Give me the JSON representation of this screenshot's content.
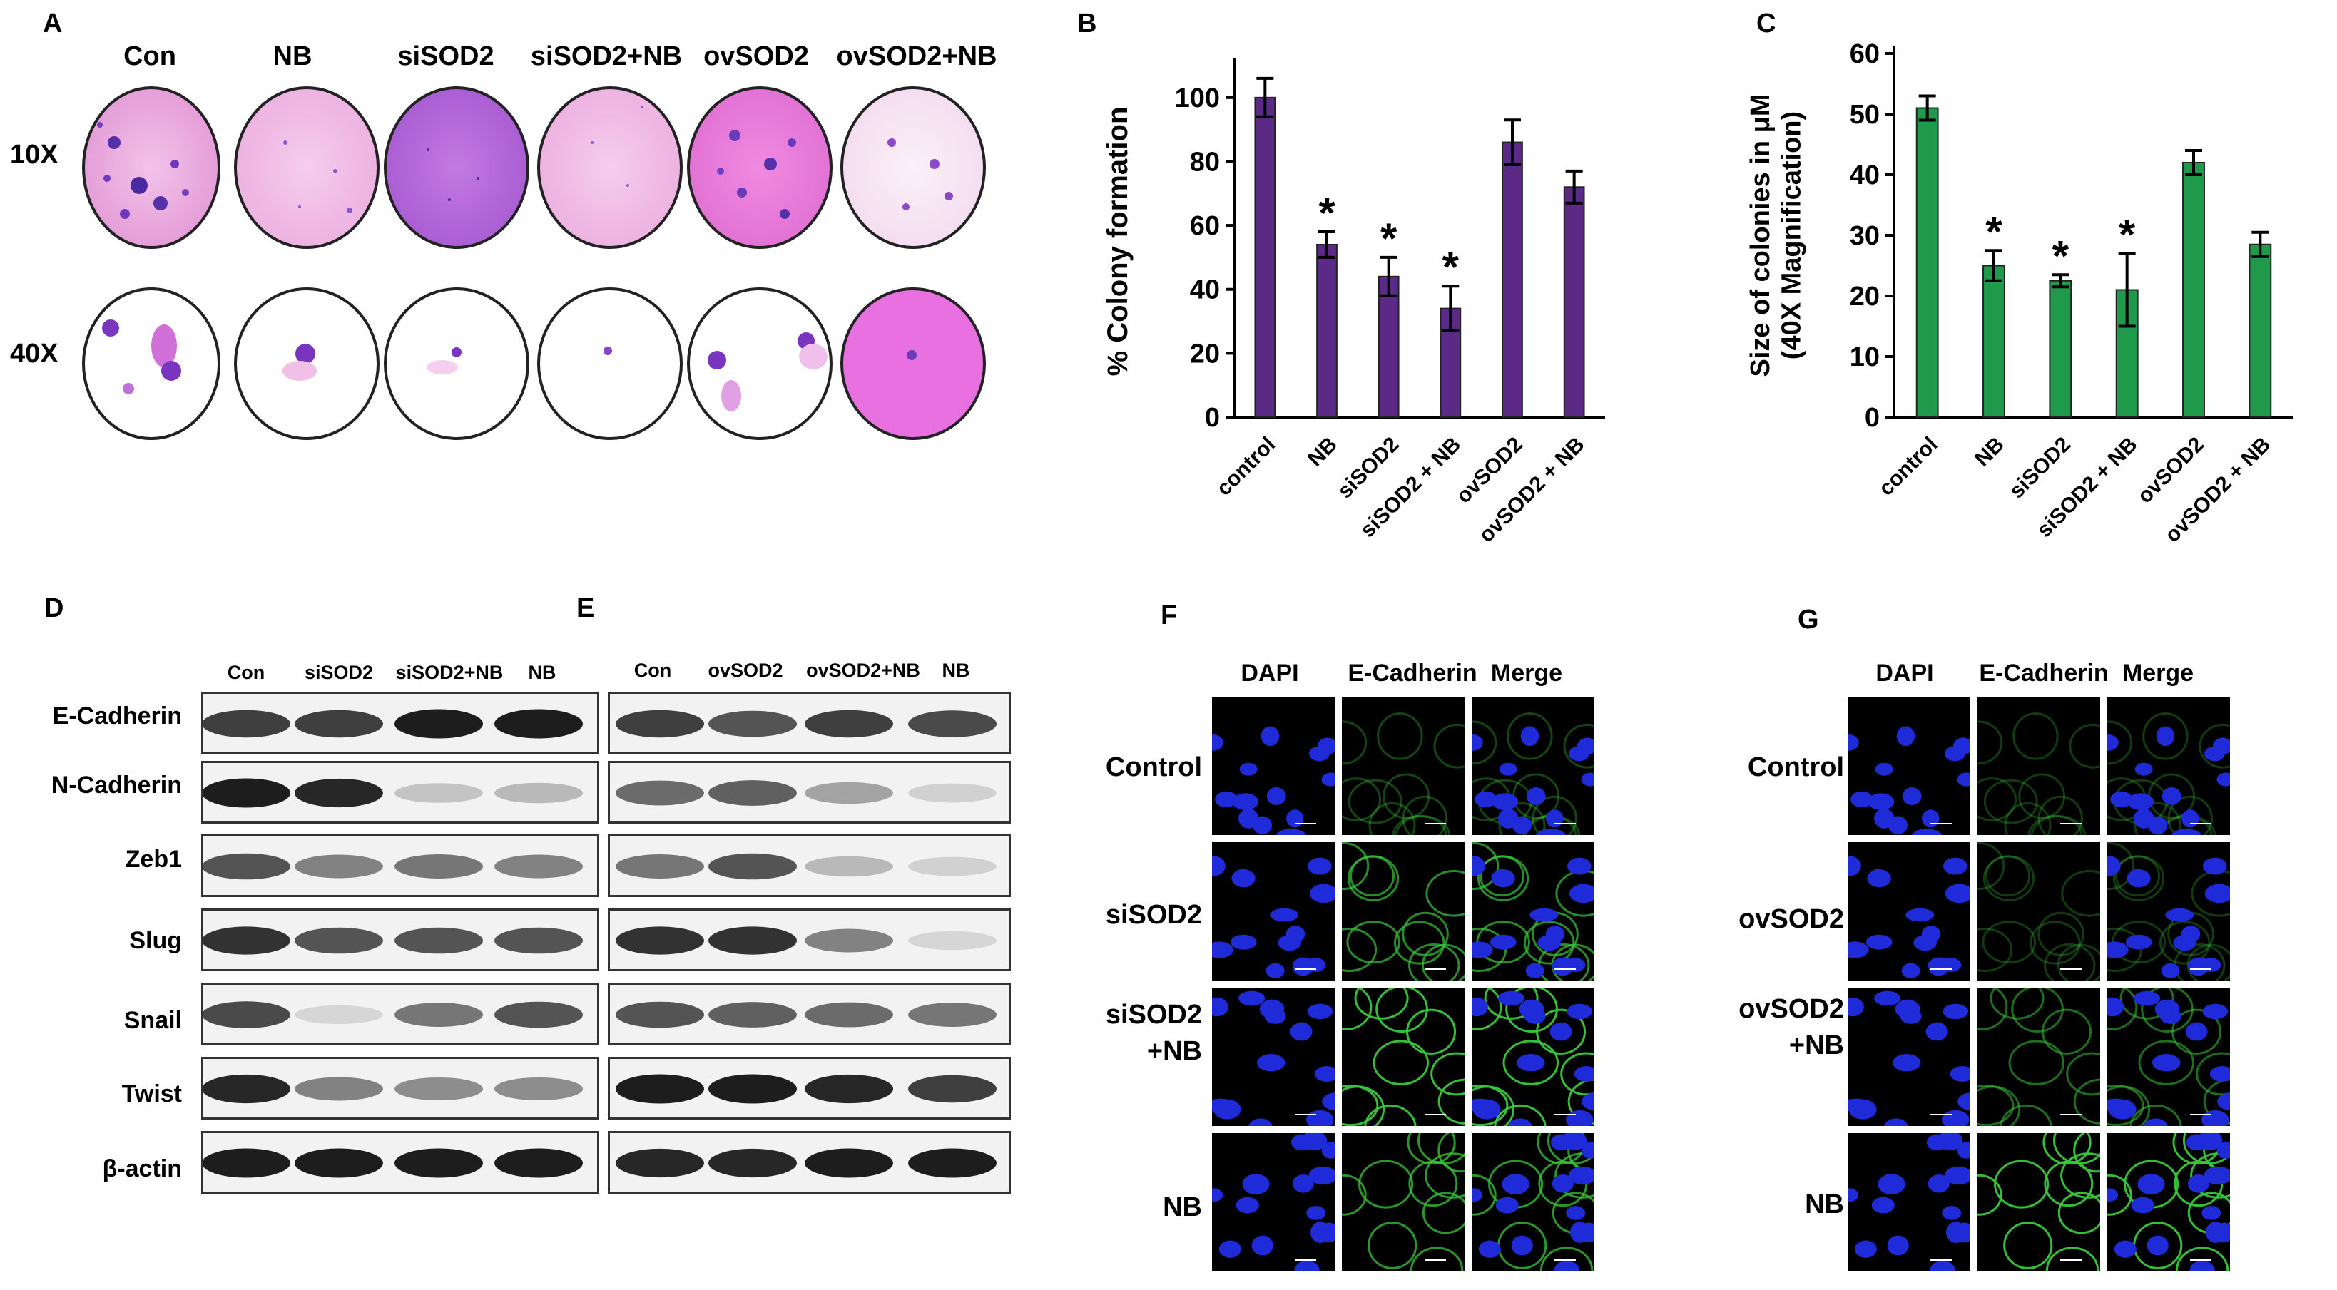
{
  "panel_letters": {
    "A": "A",
    "B": "B",
    "C": "C",
    "D": "D",
    "E": "E",
    "F": "F",
    "G": "G"
  },
  "panelA": {
    "columns": [
      "Con",
      "NB",
      "siSOD2",
      "siSOD2+NB",
      "ovSOD2",
      "ovSOD2+NB"
    ],
    "rows": [
      "10X",
      "40X"
    ]
  },
  "chart_data": [
    {
      "type": "bar",
      "categories": [
        "control",
        "NB",
        "siSOD2",
        "siSOD2 + NB",
        "ovSOD2",
        "ovSOD2 + NB"
      ],
      "values": [
        100,
        54,
        44,
        34,
        86,
        72
      ],
      "errors": [
        6,
        4,
        6,
        7,
        7,
        5
      ],
      "significance": [
        "",
        "*",
        "*",
        "*",
        "",
        ""
      ],
      "xlabel": "",
      "ylabel": "% Colony formation",
      "ylim": [
        0,
        110
      ],
      "yticks": [
        0,
        20,
        40,
        60,
        80,
        100
      ],
      "color": "#5b2a86",
      "grid": false
    },
    {
      "type": "bar",
      "categories": [
        "control",
        "NB",
        "siSOD2",
        "siSOD2 + NB",
        "ovSOD2",
        "ovSOD2 + NB"
      ],
      "values": [
        51,
        25,
        22.5,
        21,
        42,
        28.5
      ],
      "errors": [
        2,
        2.5,
        1,
        6,
        2,
        2
      ],
      "significance": [
        "",
        "*",
        "*",
        "*",
        "",
        ""
      ],
      "xlabel": "",
      "ylabel": "Size of colonies in μM (40X Magnification)",
      "ylim": [
        0,
        60
      ],
      "yticks": [
        0,
        10,
        20,
        30,
        40,
        50,
        60
      ],
      "color": "#1e9a4a",
      "grid": false
    }
  ],
  "panelD": {
    "lanes": [
      "Con",
      "siSOD2",
      "siSOD2+NB",
      "NB"
    ],
    "proteins": [
      "E-Cadherin",
      "N-Cadherin",
      "Zeb1",
      "Slug",
      "Snail",
      "Twist",
      "β-actin"
    ]
  },
  "panelE": {
    "lanes": [
      "Con",
      "ovSOD2",
      "ovSOD2+NB",
      "NB"
    ]
  },
  "panelF": {
    "channels": [
      "DAPI",
      "E-Cadherin",
      "Merge"
    ],
    "rows": [
      "Control",
      "siSOD2",
      "siSOD2\n+NB",
      "NB"
    ]
  },
  "panelG": {
    "channels": [
      "DAPI",
      "E-Cadherin",
      "Merge"
    ],
    "rows": [
      "Control",
      "ovSOD2",
      "ovSOD2\n+NB",
      "NB"
    ]
  },
  "colors": {
    "purple_bar": "#5b2a86",
    "green_bar": "#1e9a4a",
    "stain_pink": "#e9a6dc",
    "dapi_blue": "#1f2bd8",
    "cadherin_green": "#38c83a"
  }
}
